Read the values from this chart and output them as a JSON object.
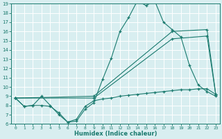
{
  "xlabel": "Humidex (Indice chaleur)",
  "x_values": [
    0,
    1,
    2,
    3,
    4,
    5,
    6,
    7,
    8,
    9,
    10,
    11,
    12,
    13,
    14,
    15,
    16,
    17,
    18,
    19,
    20,
    21,
    22,
    23
  ],
  "line_peaked": [
    8.8,
    7.9,
    8.0,
    9.0,
    8.0,
    7.0,
    6.2,
    6.3,
    7.6,
    8.3,
    10.8,
    13.1,
    16.0,
    17.5,
    19.3,
    18.8,
    19.3,
    17.0,
    16.2,
    15.4,
    12.3,
    10.2,
    9.5,
    9.0
  ],
  "line_diag1_x": [
    0,
    9,
    18,
    22,
    23
  ],
  "line_diag1_y": [
    8.8,
    9.0,
    16.0,
    16.2,
    9.2
  ],
  "line_diag2_x": [
    0,
    9,
    18,
    22,
    23
  ],
  "line_diag2_y": [
    8.8,
    8.8,
    15.2,
    15.5,
    9.2
  ],
  "line_flat_x": [
    0,
    1,
    2,
    3,
    4,
    5,
    6,
    7,
    8,
    9,
    10,
    11,
    12,
    13,
    14,
    15,
    16,
    17,
    18,
    19,
    20,
    21,
    22,
    23
  ],
  "line_flat_y": [
    8.8,
    7.9,
    8.0,
    8.0,
    7.9,
    7.2,
    6.2,
    6.5,
    7.9,
    8.5,
    8.7,
    8.8,
    9.0,
    9.1,
    9.2,
    9.3,
    9.4,
    9.5,
    9.6,
    9.7,
    9.7,
    9.8,
    9.8,
    9.2
  ],
  "line_color": "#1a7a6e",
  "bg_color": "#d8eef0",
  "grid_color": "#ffffff",
  "ylim": [
    6,
    19
  ],
  "yticks": [
    6,
    7,
    8,
    9,
    10,
    11,
    12,
    13,
    14,
    15,
    16,
    17,
    18,
    19
  ],
  "xticks": [
    0,
    1,
    2,
    3,
    4,
    5,
    6,
    7,
    8,
    9,
    10,
    11,
    12,
    13,
    14,
    15,
    16,
    17,
    18,
    19,
    20,
    21,
    22,
    23
  ]
}
